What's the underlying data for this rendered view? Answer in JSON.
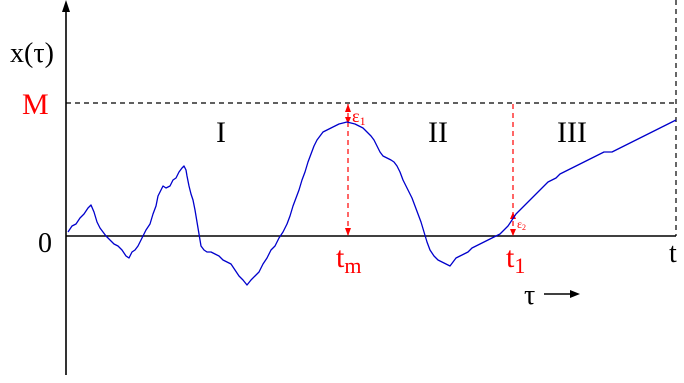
{
  "figure": {
    "y_axis_label": "x(τ)",
    "max_label": "M",
    "zero_label": "0",
    "region_labels": [
      "I",
      "II",
      "III"
    ],
    "t_m_label": "t",
    "t_m_subscript": "m",
    "t1_label": "t",
    "t1_subscript": "1",
    "t_end_label": "t",
    "eps1_label": "ε",
    "eps1_subscript": "1",
    "eps2_label": "ε",
    "eps2_subscript": "2",
    "tau_label": "τ"
  },
  "colors": {
    "curve": "#0000cc",
    "highlight": "#ff0000",
    "axis": "#000000"
  }
}
